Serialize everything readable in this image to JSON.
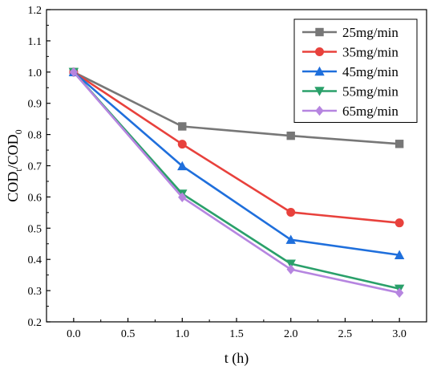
{
  "chart_data": {
    "type": "line",
    "xlabel": "t (h)",
    "ylabel": {
      "parts": [
        {
          "text": "COD",
          "sub": false
        },
        {
          "text": "t",
          "sub": true
        },
        {
          "text": "/COD",
          "sub": false
        },
        {
          "text": "0",
          "sub": true
        }
      ]
    },
    "xlim": [
      -0.25,
      3.25
    ],
    "ylim": [
      0.2,
      1.2
    ],
    "xticks": [
      0.0,
      0.5,
      1.0,
      1.5,
      2.0,
      2.5,
      3.0
    ],
    "xtick_labels": [
      "0.0",
      "0.5",
      "1.0",
      "1.5",
      "2.0",
      "2.5",
      "3.0"
    ],
    "yticks": [
      0.2,
      0.3,
      0.4,
      0.5,
      0.6,
      0.7,
      0.8,
      0.9,
      1.0,
      1.1,
      1.2
    ],
    "ytick_labels": [
      "0.2",
      "0.3",
      "0.4",
      "0.5",
      "0.6",
      "0.7",
      "0.8",
      "0.9",
      "1.0",
      "1.1",
      "1.2"
    ],
    "grid": false,
    "legend_position": "top-right",
    "x": [
      0.0,
      1.0,
      2.0,
      3.0
    ],
    "series": [
      {
        "name": "25mg/min",
        "values": [
          1.0,
          0.826,
          0.796,
          0.77
        ],
        "color": "#777777",
        "marker": "square"
      },
      {
        "name": "35mg/min",
        "values": [
          1.0,
          0.769,
          0.551,
          0.517
        ],
        "color": "#e8413c",
        "marker": "circle"
      },
      {
        "name": "45mg/min",
        "values": [
          1.0,
          0.699,
          0.463,
          0.414
        ],
        "color": "#1f6fdc",
        "marker": "triangle-up"
      },
      {
        "name": "55mg/min",
        "values": [
          1.0,
          0.61,
          0.386,
          0.306
        ],
        "color": "#2aa06a",
        "marker": "triangle-down"
      },
      {
        "name": "65mg/min",
        "values": [
          1.0,
          0.599,
          0.368,
          0.293
        ],
        "color": "#b685e0",
        "marker": "diamond"
      }
    ]
  }
}
